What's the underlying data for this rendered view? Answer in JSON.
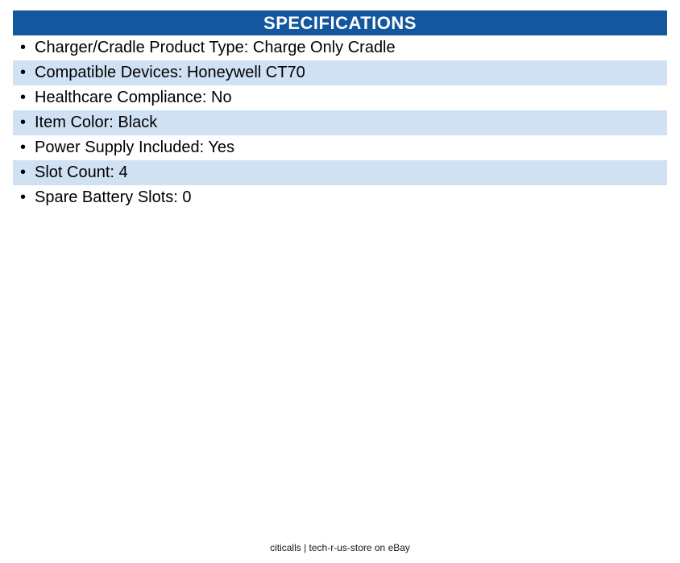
{
  "header": {
    "title": "SPECIFICATIONS"
  },
  "theme": {
    "header_bg": "#14579E",
    "header_text": "#FFFFFF",
    "alt_row_bg": "#CFE1F2",
    "text_color": "#000000",
    "page_bg": "#FFFFFF"
  },
  "specs": {
    "bullet": "•",
    "separator": ": ",
    "items": [
      {
        "label": "Charger/Cradle Product Type",
        "value": "Charge Only Cradle"
      },
      {
        "label": "Compatible Devices",
        "value": "Honeywell CT70"
      },
      {
        "label": "Healthcare Compliance",
        "value": "No"
      },
      {
        "label": "Item Color",
        "value": "Black"
      },
      {
        "label": "Power Supply Included",
        "value": "Yes"
      },
      {
        "label": "Slot Count",
        "value": "4"
      },
      {
        "label": "Spare Battery Slots",
        "value": "0"
      }
    ]
  },
  "footer": {
    "text": "citicalls | tech-r-us-store on eBay"
  }
}
